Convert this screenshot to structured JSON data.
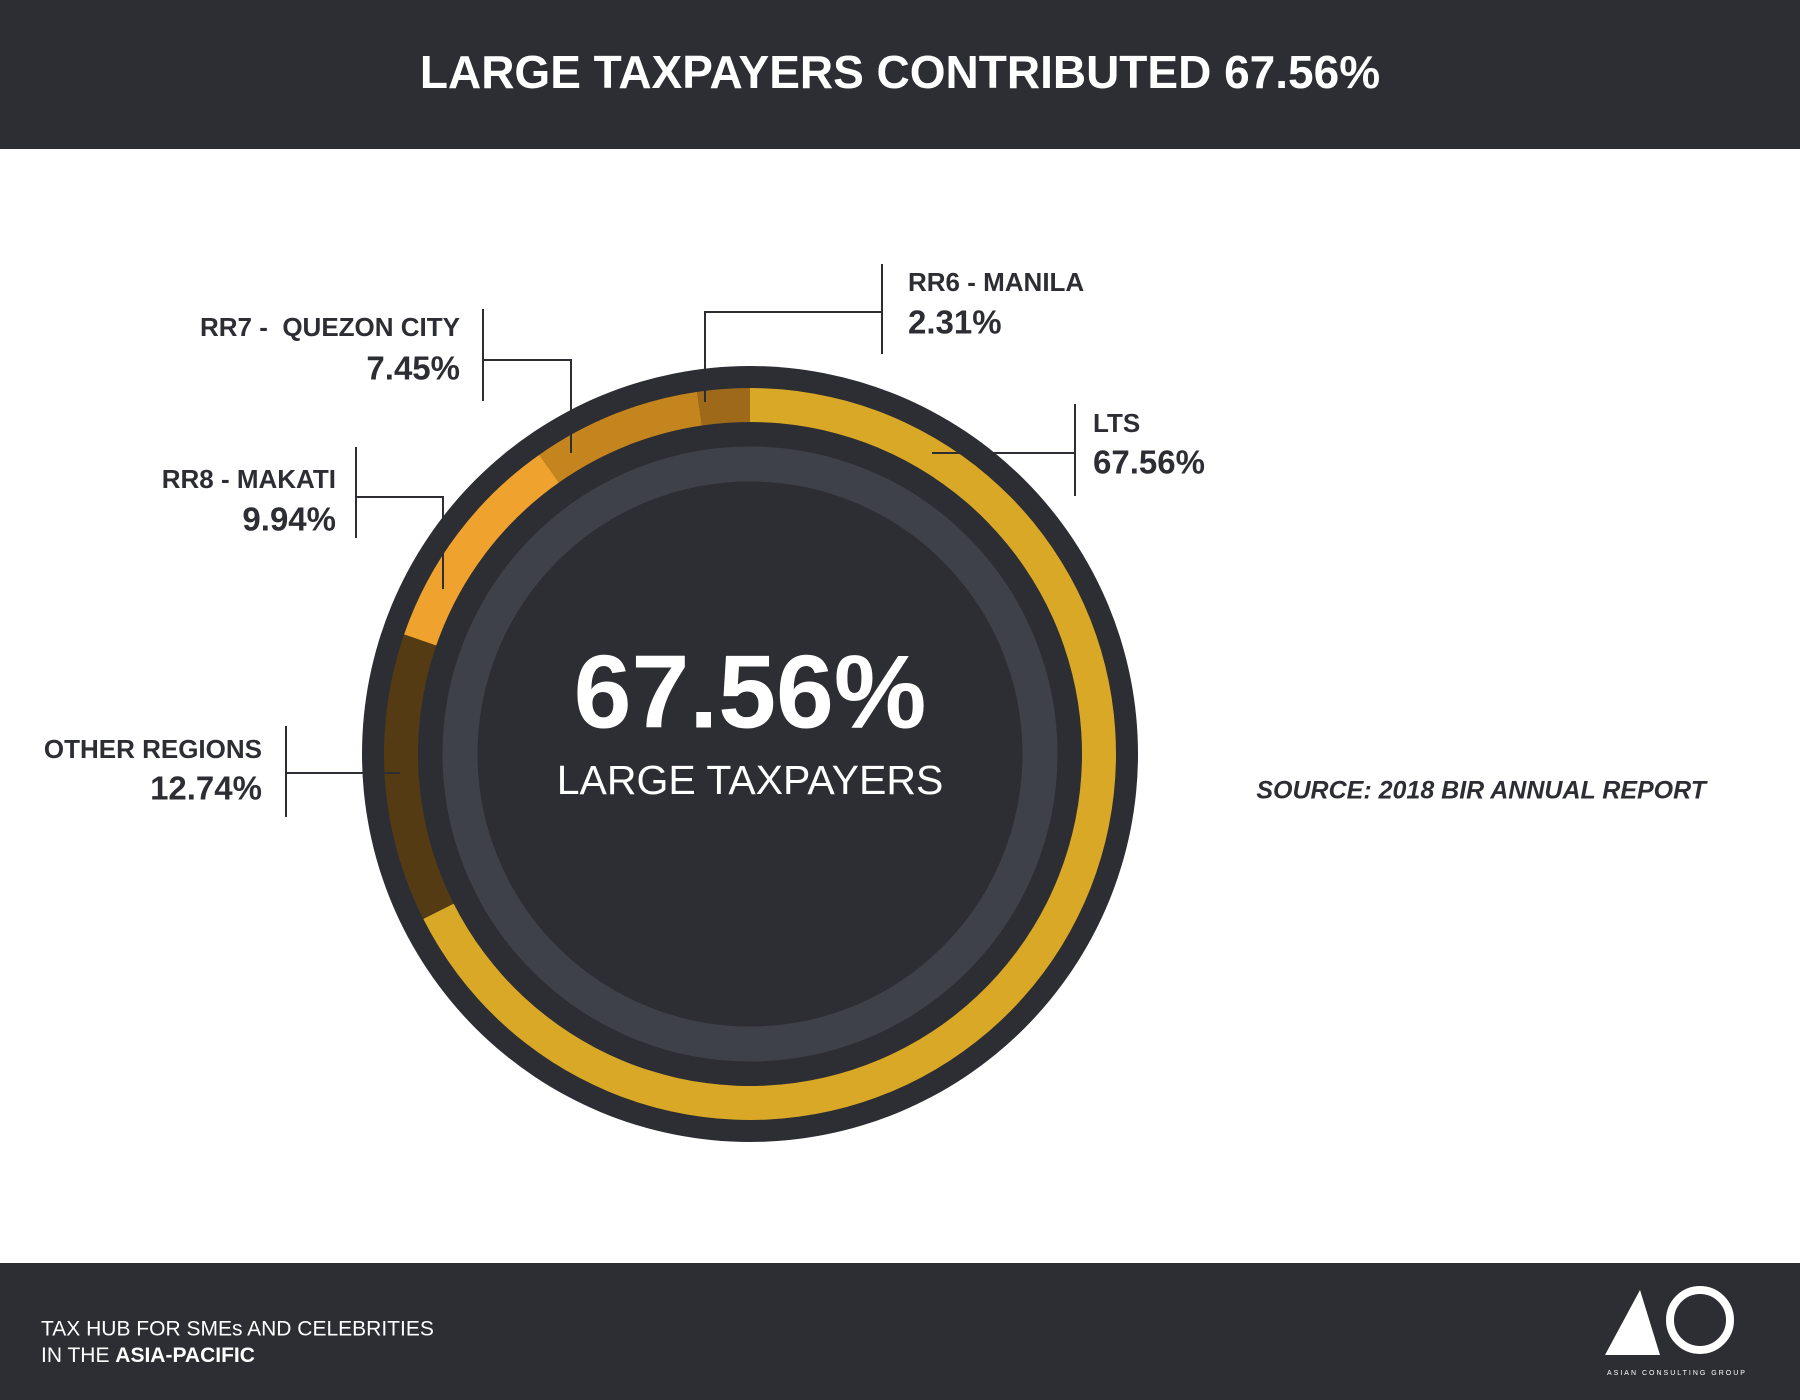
{
  "chart_data": {
    "type": "pie",
    "title": "LARGE TAXPAYERS CONTRIBUTED 67.56%",
    "categories": [
      "LTS",
      "OTHER REGIONS",
      "RR8 - MAKATI",
      "RR7 -  QUEZON CITY",
      "RR6 - MANILA"
    ],
    "values": [
      67.56,
      12.74,
      9.94,
      7.45,
      2.31
    ],
    "value_labels": [
      "67.56%",
      "12.74%",
      "9.94%",
      "7.45%",
      "2.31%"
    ],
    "colors": [
      "#d9a826",
      "#553b14",
      "#f0a22e",
      "#c4841e",
      "#9e6a1a"
    ],
    "center_label": "67.56%",
    "center_text": "LARGE TAXPAYERS",
    "source": "SOURCE: 2018 BIR ANNUAL REPORT"
  },
  "footer": {
    "line1": "TAX HUB FOR SMEs AND CELEBRITIES",
    "line2_prefix": "IN THE ",
    "line2_bold": "ASIA-PACIFIC",
    "logo_caption": "ASIAN CONSULTING GROUP"
  }
}
